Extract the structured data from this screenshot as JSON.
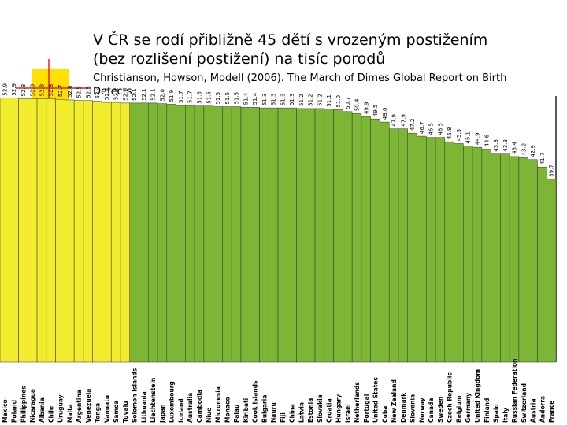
{
  "chart_data": {
    "type": "bar",
    "title": [
      "V ČR se rodí přibližně 45 dětí s vrozeným postižením",
      "(bez rozlišení postižení) na tisíc porodů"
    ],
    "subtitle": [
      "Christianson, Howson, Modell (2006). The March of Dimes Global Report on Birth",
      "Defects."
    ],
    "categories": [
      "Mexico",
      "Poland",
      "Philippines",
      "Nicaragua",
      "Albania",
      "Chile",
      "Uruguay",
      "Malta",
      "Argentina",
      "Venezuela",
      "Tonga",
      "Vanuatu",
      "Samoa",
      "Tuvalu",
      "Solomon Islands",
      "Lithuania",
      "Liechtenstein",
      "Japan",
      "Luxembourg",
      "Iceland",
      "Australia",
      "Cambodia",
      "Niue",
      "Micronesia",
      "Monaco",
      "Palau",
      "Kiribati",
      "Cook Islands",
      "Bulgaria",
      "Nauru",
      "Fiji",
      "China",
      "Latvia",
      "Estonia",
      "Slovakia",
      "Croatia",
      "Hungary",
      "Israel",
      "Netherlands",
      "Portugal",
      "United States",
      "Cuba",
      "New Zealand",
      "Denmark",
      "Slovenia",
      "Norway",
      "Canada",
      "Sweden",
      "Czech Republic",
      "Belgium",
      "Germany",
      "United Kingdom",
      "Finland",
      "Spain",
      "Italy",
      "Russian Federation",
      "Switzerland",
      "Austria",
      "Andorra",
      "France"
    ],
    "values": [
      52.9,
      52.9,
      52.8,
      52.8,
      52.8,
      52.8,
      52.7,
      52.6,
      52.5,
      52.5,
      52.4,
      52.2,
      52.2,
      52.1,
      52.1,
      52.1,
      52.1,
      52.0,
      51.9,
      51.7,
      51.7,
      51.6,
      51.6,
      51.5,
      51.5,
      51.5,
      51.4,
      51.4,
      51.3,
      51.3,
      51.3,
      51.3,
      51.2,
      51.2,
      51.2,
      51.1,
      51.0,
      50.7,
      50.4,
      49.9,
      49.5,
      49.0,
      47.9,
      47.9,
      47.2,
      46.7,
      46.5,
      46.5,
      45.8,
      45.5,
      45.1,
      44.9,
      44.6,
      43.8,
      43.8,
      43.4,
      43.2,
      42.9,
      41.7,
      39.7
    ],
    "value_labels": [
      "52.9",
      "52.9",
      "52.8",
      "52.8",
      "52.8",
      "52.8",
      "52.7",
      "52.6",
      "52.5",
      "52.5",
      "52.4",
      "52.2",
      "52.2",
      "52.1",
      "52.1",
      "52.1",
      "52.1",
      "52.0",
      "51.9",
      "51.7",
      "51.7",
      "51.6",
      "51.6",
      "51.5",
      "51.5",
      "51.5",
      "51.4",
      "51.4",
      "51.3",
      "51.3",
      "51.3",
      "51.3",
      "51.2",
      "51.2",
      "51.2",
      "51.1",
      "51.0",
      "50.7",
      "50.4",
      "49.9",
      "49.5",
      "49.0",
      "47.9",
      "47.9",
      "47.2",
      "46.7",
      "46.5",
      "46.5",
      "45.8",
      "45.5",
      "45.1",
      "44.9",
      "44.6",
      "43.8",
      "43.8",
      "43.4",
      "43.2",
      "42.9",
      "41.7",
      "39.7"
    ],
    "colors": [
      "#f2ec2e",
      "#f2ec2e",
      "#f2ec2e",
      "#f2ec2e",
      "#f2ec2e",
      "#f2ec2e",
      "#f2ec2e",
      "#f2ec2e",
      "#f2ec2e",
      "#f2ec2e",
      "#f2ec2e",
      "#f2ec2e",
      "#f2ec2e",
      "#f2ec2e",
      "#7db534",
      "#7db534",
      "#7db534",
      "#7db534",
      "#7db534",
      "#7db534",
      "#7db534",
      "#7db534",
      "#7db534",
      "#7db534",
      "#7db534",
      "#7db534",
      "#7db534",
      "#7db534",
      "#7db534",
      "#7db534",
      "#7db534",
      "#7db534",
      "#7db534",
      "#7db534",
      "#7db534",
      "#7db534",
      "#7db534",
      "#7db534",
      "#7db534",
      "#7db534",
      "#7db534",
      "#7db534",
      "#7db534",
      "#7db534",
      "#7db534",
      "#7db534",
      "#7db534",
      "#7db534",
      "#7db534",
      "#7db534",
      "#7db534",
      "#7db534",
      "#7db534",
      "#7db534",
      "#7db534",
      "#7db534",
      "#7db534",
      "#7db534",
      "#7db534",
      "#7db534"
    ],
    "ylim": [
      10,
      54
    ]
  }
}
